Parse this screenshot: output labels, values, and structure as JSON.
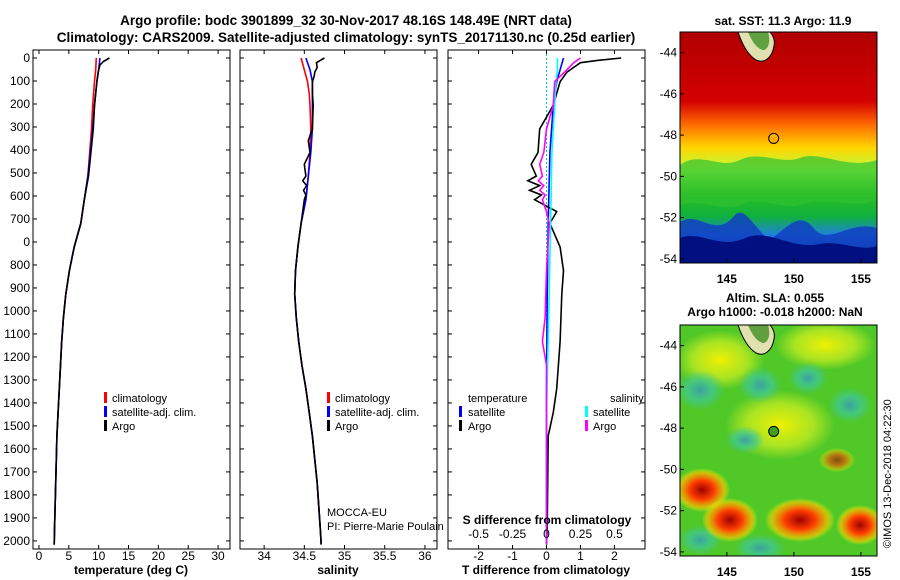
{
  "header": {
    "line1": "Argo profile: bodc 3901899_32 30-Nov-2017 48.16S 148.49E (NRT data)",
    "line2": "Climatology: CARS2009. Satellite-adjusted climatology: synTS_20171130.nc (0.25d earlier)"
  },
  "colors": {
    "climatology": "#ff0000",
    "satellite": "#0000ff",
    "argo": "#000000",
    "sat_salinity": "#00ffff",
    "argo_salinity": "#ff00ff"
  },
  "depth_ticks": [
    "0",
    "100",
    "200",
    "300",
    "400",
    "500",
    "600",
    "700",
    "0",
    "800",
    "900",
    "1000",
    "1100",
    "1200",
    "1300",
    "1400",
    "1500",
    "1600",
    "1700",
    "1800",
    "1900",
    "2000"
  ],
  "chart_data": [
    {
      "type": "line",
      "panel": "temperature",
      "xlabel": "temperature (deg C)",
      "xlim": [
        -1,
        32
      ],
      "xticks": [
        "0",
        "5",
        "10",
        "15",
        "20",
        "25",
        "30"
      ],
      "ylim": [
        0,
        2070
      ],
      "legend": [
        "climatology",
        "satellite-adj. clim.",
        "Argo"
      ],
      "series": [
        {
          "name": "climatology",
          "depth": [
            0,
            50,
            100,
            200,
            300,
            400,
            500,
            600,
            700,
            800,
            900,
            1000,
            1100,
            1200,
            1300,
            1400,
            1500,
            1600,
            1700,
            1800,
            1900,
            2000,
            2060
          ],
          "values": [
            9.6,
            9.5,
            9.3,
            9.0,
            8.8,
            8.5,
            8.2,
            7.6,
            7.0,
            5.9,
            5.1,
            4.5,
            4.1,
            3.8,
            3.6,
            3.4,
            3.2,
            3.0,
            2.9,
            2.8,
            2.7,
            2.6,
            2.55
          ]
        },
        {
          "name": "satellite-adj. clim.",
          "depth": [
            0,
            50,
            100,
            200,
            300,
            400,
            500,
            600,
            700,
            800,
            900,
            1000,
            1100,
            1200,
            1300,
            1400,
            1500,
            1600,
            1700,
            1800,
            1900,
            2000,
            2060
          ],
          "values": [
            10.2,
            10.0,
            9.7,
            9.3,
            9.0,
            8.6,
            8.2,
            7.6,
            7.0,
            5.9,
            5.1,
            4.5,
            4.1,
            3.8,
            3.6,
            3.4,
            3.2,
            3.0,
            2.9,
            2.8,
            2.7,
            2.6,
            2.55
          ]
        },
        {
          "name": "Argo",
          "depth": [
            0,
            15,
            30,
            60,
            100,
            200,
            300,
            400,
            500,
            600,
            700,
            800,
            900,
            1000,
            1100,
            1200,
            1300,
            1400,
            1500,
            1600,
            1700,
            1800,
            1900,
            2000,
            2060
          ],
          "values": [
            11.8,
            10.8,
            10.2,
            9.9,
            9.7,
            9.3,
            9.1,
            8.7,
            8.3,
            7.6,
            7.0,
            5.9,
            5.1,
            4.5,
            4.1,
            3.8,
            3.6,
            3.4,
            3.2,
            3.0,
            2.9,
            2.8,
            2.7,
            2.6,
            2.55
          ]
        }
      ]
    },
    {
      "type": "line",
      "panel": "salinity",
      "xlabel": "salinity",
      "xlim": [
        33.7,
        36.15
      ],
      "xticks": [
        "34",
        "34.5",
        "35",
        "35.5",
        "36"
      ],
      "ylim": [
        0,
        2070
      ],
      "legend": [
        "climatology",
        "satellite-adj. clim.",
        "Argo"
      ],
      "series": [
        {
          "name": "climatology",
          "depth": [
            0,
            50,
            100,
            150,
            200,
            300,
            400,
            500,
            600,
            700,
            800,
            900,
            1000,
            1100,
            1200,
            1300,
            1400,
            1500,
            1600,
            1700,
            1800,
            1900,
            2000,
            2060
          ],
          "values": [
            34.46,
            34.5,
            34.54,
            34.56,
            34.57,
            34.58,
            34.57,
            34.55,
            34.52,
            34.46,
            34.42,
            34.39,
            34.38,
            34.4,
            34.43,
            34.47,
            34.52,
            34.56,
            34.6,
            34.63,
            34.66,
            34.68,
            34.7,
            34.71
          ]
        },
        {
          "name": "satellite-adj. clim.",
          "depth": [
            0,
            50,
            100,
            150,
            200,
            300,
            400,
            500,
            600,
            700,
            800,
            900,
            1000,
            1100,
            1200,
            1300,
            1400,
            1500,
            1600,
            1700,
            1800,
            1900,
            2000,
            2060
          ],
          "values": [
            34.52,
            34.57,
            34.6,
            34.6,
            34.6,
            34.6,
            34.58,
            34.55,
            34.52,
            34.46,
            34.42,
            34.39,
            34.38,
            34.4,
            34.43,
            34.47,
            34.52,
            34.56,
            34.6,
            34.63,
            34.66,
            34.68,
            34.7,
            34.71
          ]
        },
        {
          "name": "Argo",
          "depth": [
            0,
            20,
            40,
            60,
            80,
            100,
            150,
            200,
            300,
            350,
            400,
            450,
            500,
            520,
            540,
            560,
            580,
            600,
            650,
            700,
            800,
            900,
            1000,
            1100,
            1200,
            1300,
            1400,
            1500,
            1600,
            1700,
            1800,
            1900,
            2000,
            2060
          ],
          "values": [
            34.75,
            34.65,
            34.66,
            34.63,
            34.62,
            34.6,
            34.6,
            34.61,
            34.6,
            34.55,
            34.57,
            34.5,
            34.52,
            34.48,
            34.53,
            34.49,
            34.52,
            34.5,
            34.48,
            34.46,
            34.42,
            34.39,
            34.38,
            34.4,
            34.43,
            34.47,
            34.52,
            34.56,
            34.6,
            34.63,
            34.66,
            34.68,
            34.7,
            34.71
          ]
        }
      ]
    },
    {
      "type": "line",
      "panel": "difference",
      "xlabel": "T difference from climatology",
      "xlabel2": "S difference from climatology",
      "xlim": [
        -2.9,
        2.9
      ],
      "xticks": [
        "-2",
        "-1",
        "0",
        "1",
        "2"
      ],
      "xticks2": [
        "-0.5",
        "-0.25",
        "0",
        "0.25",
        "0.5"
      ],
      "ylim": [
        0,
        2070
      ],
      "legend_left_title": "temperature",
      "legend_right_title": "salinity",
      "legend_left": [
        "satellite",
        "Argo"
      ],
      "legend_right": [
        "satellite",
        "Argo"
      ],
      "series": [
        {
          "name": "T satellite",
          "depth": [
            0,
            50,
            100,
            200,
            400,
            700,
            1000,
            1500,
            2060
          ],
          "values": [
            0.5,
            0.4,
            0.3,
            0.2,
            0.1,
            0.05,
            0.02,
            0.0,
            0.0
          ]
        },
        {
          "name": "T Argo",
          "depth": [
            0,
            10,
            20,
            40,
            60,
            100,
            150,
            200,
            250,
            300,
            400,
            450,
            500,
            520,
            540,
            560,
            580,
            600,
            650,
            700,
            800,
            900,
            1000,
            1200,
            1400,
            1500,
            1600,
            2000,
            2060
          ],
          "values": [
            2.2,
            1.5,
            1.0,
            0.8,
            0.6,
            0.4,
            0.3,
            0.2,
            0.0,
            -0.2,
            -0.25,
            -0.45,
            -0.3,
            -0.55,
            -0.2,
            -0.5,
            -0.15,
            -0.35,
            0.3,
            0.1,
            0.4,
            0.5,
            0.45,
            0.4,
            0.3,
            0.2,
            0.05,
            0.02,
            0.0
          ]
        },
        {
          "name": "S satellite",
          "depth": [
            0,
            50,
            100,
            200,
            400,
            700,
            1000,
            1500,
            2060
          ],
          "values": [
            0.08,
            0.08,
            0.07,
            0.06,
            0.04,
            0.03,
            0.02,
            0.0,
            0.0
          ]
        },
        {
          "name": "S Argo",
          "depth": [
            0,
            20,
            50,
            100,
            200,
            300,
            400,
            450,
            500,
            520,
            540,
            560,
            580,
            600,
            650,
            700,
            900,
            1100,
            1200,
            1300,
            1400,
            1500,
            1600,
            2000,
            2060
          ],
          "values": [
            0.25,
            0.2,
            0.15,
            0.06,
            0.05,
            0.0,
            -0.02,
            -0.05,
            -0.03,
            -0.06,
            -0.02,
            -0.05,
            -0.01,
            -0.03,
            0.0,
            0.02,
            0.0,
            -0.01,
            -0.03,
            0.0,
            0.0,
            0.0,
            0.0,
            0.0,
            0.0
          ]
        }
      ]
    },
    {
      "type": "heatmap",
      "panel": "sst-map",
      "title": "sat. SST: 11.3 Argo: 11.9",
      "xticks": [
        "145",
        "150",
        "155"
      ],
      "yticks": [
        "-44",
        "-46",
        "-48",
        "-50",
        "-52",
        "-54"
      ],
      "marker_lon": 148.49,
      "marker_lat": -48.16
    },
    {
      "type": "heatmap",
      "panel": "sla-map",
      "title": "Altim. SLA: 0.055",
      "subtitle": "Argo h1000: -0.018 h2000: NaN",
      "xticks": [
        "145",
        "150",
        "155"
      ],
      "yticks": [
        "-44",
        "-46",
        "-48",
        "-50",
        "-52",
        "-54"
      ],
      "marker_lon": 148.49,
      "marker_lat": -48.16
    }
  ],
  "annotations": {
    "mocca": "MOCCA-EU",
    "pi": "PI: Pierre-Marie Poulain",
    "imos": "©IMOS 13-Dec-2018 04:22:30"
  }
}
